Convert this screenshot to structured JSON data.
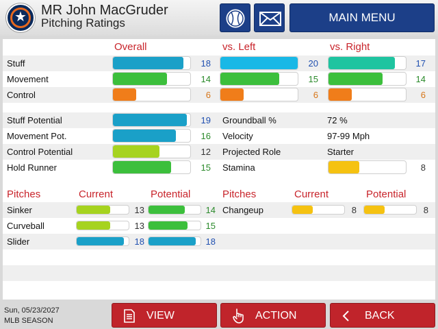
{
  "header": {
    "title": "MR John MacGruder",
    "subtitle": "Pitching Ratings",
    "main_menu_label": "MAIN MENU"
  },
  "colors": {
    "blue_value": "#1f4fb0",
    "green_value": "#2b8a2b",
    "orange_value": "#d67518",
    "gray_value": "#333333"
  },
  "ratings": {
    "col_overall": "Overall",
    "col_left": "vs. Left",
    "col_right": "vs. Right",
    "rows": [
      {
        "label": "Stuff",
        "overall": "18",
        "left": "20",
        "right": "17"
      },
      {
        "label": "Movement",
        "overall": "14",
        "left": "15",
        "right": "14"
      },
      {
        "label": "Control",
        "overall": "6",
        "left": "6",
        "right": "6"
      }
    ]
  },
  "potential": {
    "rows": [
      {
        "label": "Stuff Potential",
        "value": "19"
      },
      {
        "label": "Movement Pot.",
        "value": "16"
      },
      {
        "label": "Control Potential",
        "value": "12"
      },
      {
        "label": "Hold Runner",
        "value": "15"
      }
    ],
    "info": [
      {
        "label": "Groundball %",
        "value": "72 %"
      },
      {
        "label": "Velocity",
        "value": "97-99 Mph"
      },
      {
        "label": "Projected Role",
        "value": "Starter"
      },
      {
        "label": "Stamina",
        "value": "8"
      }
    ]
  },
  "pitches": {
    "col_pitches": "Pitches",
    "col_current": "Current",
    "col_potential": "Potential",
    "left": [
      {
        "name": "Sinker",
        "current": "13",
        "potential": "14"
      },
      {
        "name": "Curveball",
        "current": "13",
        "potential": "15"
      },
      {
        "name": "Slider",
        "current": "18",
        "potential": "18"
      }
    ],
    "right": [
      {
        "name": "Changeup",
        "current": "8",
        "potential": "8"
      }
    ]
  },
  "footer": {
    "date": "Sun, 05/23/2027",
    "season": "MLB SEASON",
    "view_label": "VIEW",
    "action_label": "ACTION",
    "back_label": "BACK"
  }
}
